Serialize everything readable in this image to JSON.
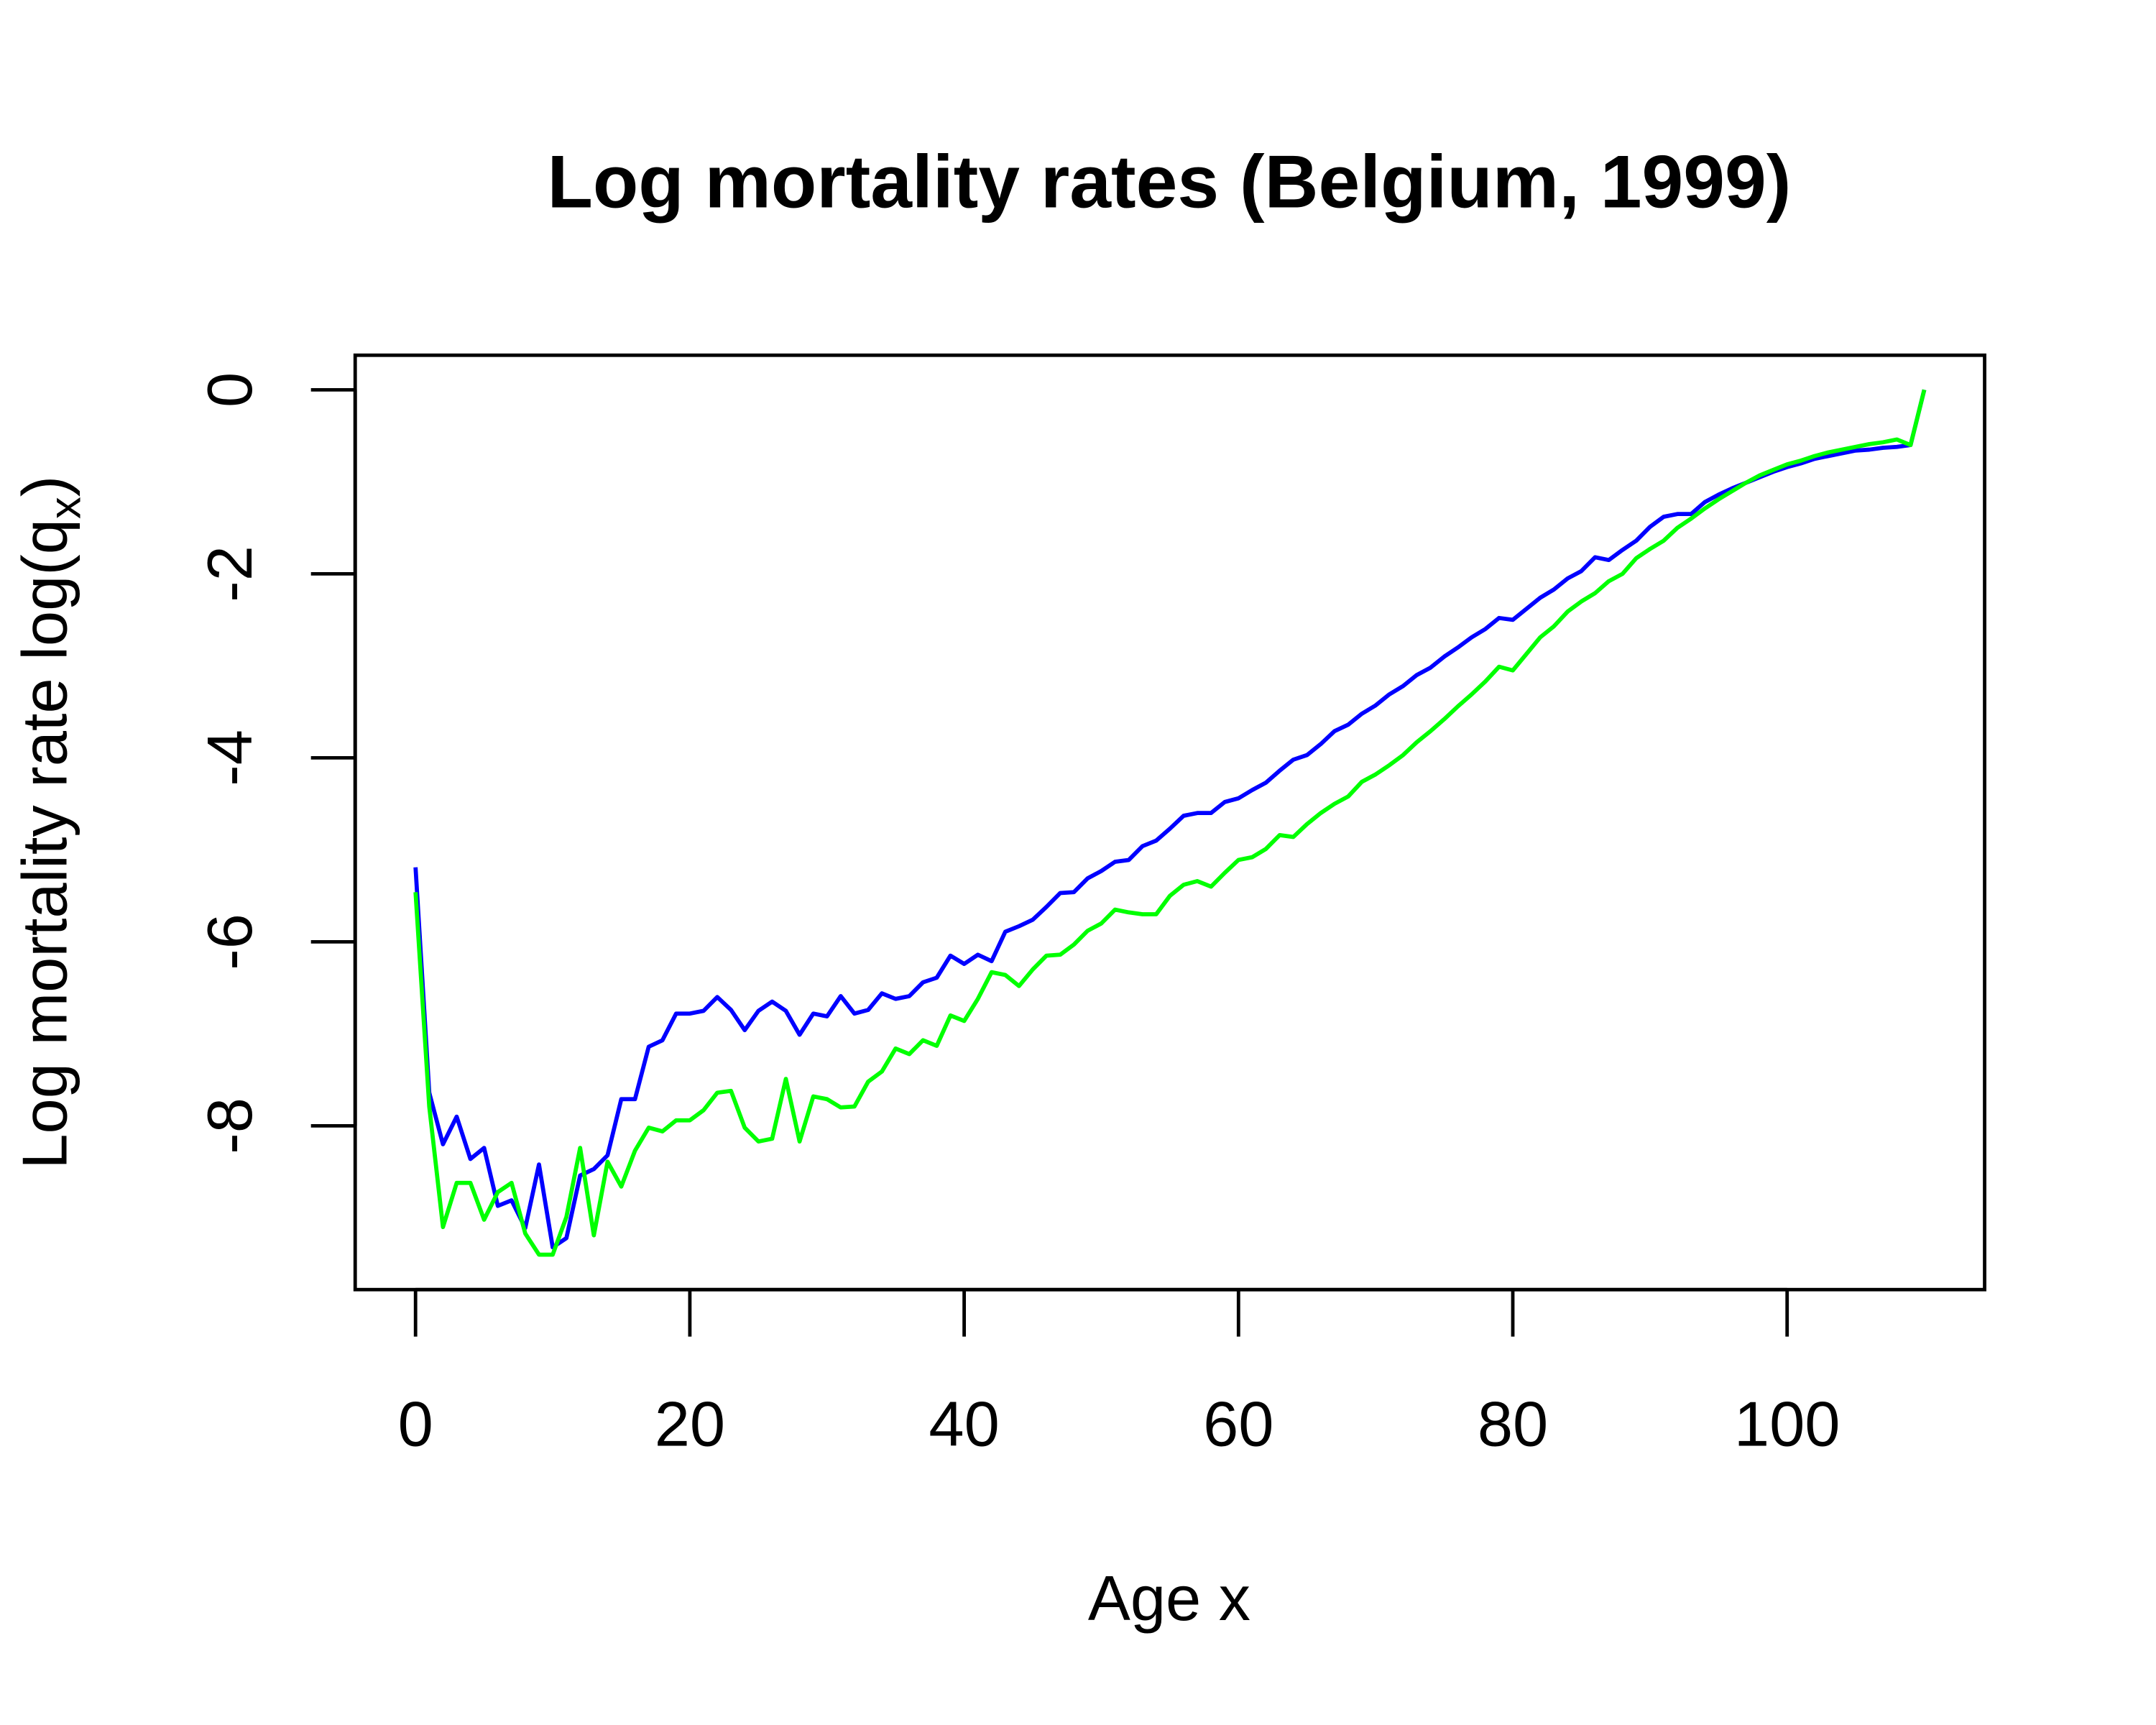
{
  "chart_data": {
    "type": "line",
    "title": "Log mortality rates (Belgium, 1999)",
    "x_label": "Age x",
    "y_label": [
      "Log mortality rate log(q",
      "x",
      ")"
    ],
    "x": [
      0,
      1,
      2,
      3,
      4,
      5,
      6,
      7,
      8,
      9,
      10,
      11,
      12,
      13,
      14,
      15,
      16,
      17,
      18,
      19,
      20,
      21,
      22,
      23,
      24,
      25,
      26,
      27,
      28,
      29,
      30,
      31,
      32,
      33,
      34,
      35,
      36,
      37,
      38,
      39,
      40,
      41,
      42,
      43,
      44,
      45,
      46,
      47,
      48,
      49,
      50,
      51,
      52,
      53,
      54,
      55,
      56,
      57,
      58,
      59,
      60,
      61,
      62,
      63,
      64,
      65,
      66,
      67,
      68,
      69,
      70,
      71,
      72,
      73,
      74,
      75,
      76,
      77,
      78,
      79,
      80,
      81,
      82,
      83,
      84,
      85,
      86,
      87,
      88,
      89,
      90,
      91,
      92,
      93,
      94,
      95,
      96,
      97,
      98,
      99,
      100,
      101,
      102,
      103,
      104,
      105,
      106,
      107,
      108,
      109,
      110
    ],
    "series": [
      {
        "color": "#0000ff",
        "values": [
          -5.19,
          -7.64,
          -8.2,
          -7.9,
          -8.36,
          -8.24,
          -8.87,
          -8.81,
          -9.11,
          -8.42,
          -9.32,
          -9.22,
          -8.54,
          -8.47,
          -8.32,
          -7.71,
          -7.71,
          -7.14,
          -7.07,
          -6.78,
          -6.78,
          -6.75,
          -6.6,
          -6.74,
          -6.96,
          -6.75,
          -6.65,
          -6.75,
          -7.01,
          -6.78,
          -6.81,
          -6.59,
          -6.78,
          -6.74,
          -6.56,
          -6.62,
          -6.59,
          -6.44,
          -6.39,
          -6.15,
          -6.24,
          -6.14,
          -6.21,
          -5.89,
          -5.83,
          -5.76,
          -5.62,
          -5.47,
          -5.46,
          -5.31,
          -5.23,
          -5.13,
          -5.11,
          -4.96,
          -4.9,
          -4.77,
          -4.63,
          -4.6,
          -4.6,
          -4.48,
          -4.44,
          -4.35,
          -4.27,
          -4.14,
          -4.02,
          -3.97,
          -3.85,
          -3.71,
          -3.64,
          -3.52,
          -3.43,
          -3.31,
          -3.22,
          -3.1,
          -3.02,
          -2.9,
          -2.8,
          -2.69,
          -2.6,
          -2.48,
          -2.5,
          -2.38,
          -2.26,
          -2.17,
          -2.05,
          -1.97,
          -1.82,
          -1.85,
          -1.74,
          -1.64,
          -1.49,
          -1.38,
          -1.35,
          -1.35,
          -1.22,
          -1.14,
          -1.07,
          -1.01,
          -0.95,
          -0.89,
          -0.84,
          -0.8,
          -0.75,
          -0.72,
          -0.69,
          -0.66,
          -0.65,
          -0.63,
          -0.62,
          -0.6,
          0
        ]
      },
      {
        "color": "#00ff00",
        "values": [
          -5.46,
          -7.79,
          -9.1,
          -8.62,
          -8.62,
          -9.02,
          -8.72,
          -8.62,
          -9.17,
          -9.4,
          -9.4,
          -8.99,
          -8.24,
          -9.19,
          -8.39,
          -8.66,
          -8.27,
          -8.02,
          -8.06,
          -7.94,
          -7.94,
          -7.83,
          -7.64,
          -7.62,
          -8.02,
          -8.17,
          -8.14,
          -7.49,
          -8.17,
          -7.68,
          -7.71,
          -7.8,
          -7.79,
          -7.52,
          -7.41,
          -7.16,
          -7.22,
          -7.07,
          -7.13,
          -6.8,
          -6.86,
          -6.62,
          -6.33,
          -6.36,
          -6.48,
          -6.3,
          -6.15,
          -6.14,
          -6.03,
          -5.88,
          -5.8,
          -5.65,
          -5.68,
          -5.7,
          -5.7,
          -5.5,
          -5.38,
          -5.34,
          -5.4,
          -5.25,
          -5.11,
          -5.08,
          -4.99,
          -4.84,
          -4.86,
          -4.72,
          -4.6,
          -4.5,
          -4.42,
          -4.26,
          -4.18,
          -4.08,
          -3.97,
          -3.83,
          -3.71,
          -3.58,
          -3.44,
          -3.31,
          -3.17,
          -3.01,
          -3.05,
          -2.87,
          -2.69,
          -2.57,
          -2.41,
          -2.3,
          -2.21,
          -2.08,
          -2,
          -1.83,
          -1.73,
          -1.64,
          -1.5,
          -1.4,
          -1.29,
          -1.19,
          -1.1,
          -1.01,
          -0.93,
          -0.87,
          -0.81,
          -0.77,
          -0.72,
          -0.68,
          -0.65,
          -0.62,
          -0.59,
          -0.57,
          -0.54,
          -0.6,
          0
        ]
      }
    ],
    "xlim": [
      -4.4,
      114.4
    ],
    "ylim": [
      -9.78,
      0.376
    ],
    "xticks": [
      0,
      20,
      40,
      60,
      80,
      100
    ],
    "yticks": [
      0,
      -2,
      -4,
      -6,
      -8
    ]
  }
}
